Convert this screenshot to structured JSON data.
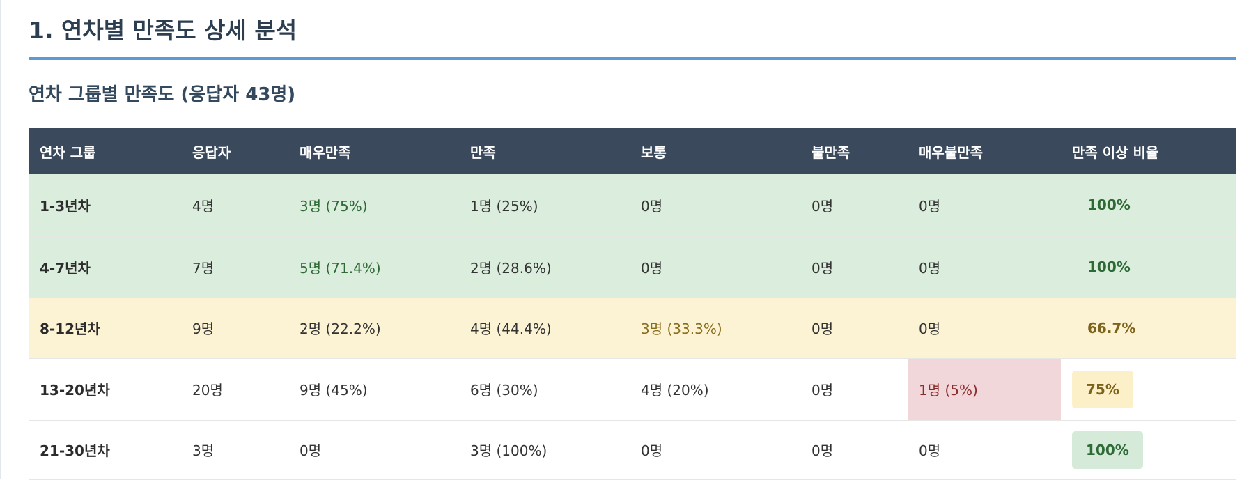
{
  "page": {
    "section_title": "1. 연차별 만족도 상세 분석",
    "subsection_title": "연차 그룹별 만족도 (응답자 43명)"
  },
  "table": {
    "headers": [
      "연차 그룹",
      "응답자",
      "매우만족",
      "만족",
      "보통",
      "불만족",
      "매우불만족",
      "만족 이상 비율"
    ],
    "rows": [
      {
        "group": "1-3년차",
        "respondents": "4명",
        "very_satisfied": "3명 (75%)",
        "satisfied": "1명 (25%)",
        "neutral": "0명",
        "dissatisfied": "0명",
        "very_dissatisfied": "0명",
        "rate": "100%"
      },
      {
        "group": "4-7년차",
        "respondents": "7명",
        "very_satisfied": "5명 (71.4%)",
        "satisfied": "2명 (28.6%)",
        "neutral": "0명",
        "dissatisfied": "0명",
        "very_dissatisfied": "0명",
        "rate": "100%"
      },
      {
        "group": "8-12년차",
        "respondents": "9명",
        "very_satisfied": "2명 (22.2%)",
        "satisfied": "4명 (44.4%)",
        "neutral": "3명 (33.3%)",
        "dissatisfied": "0명",
        "very_dissatisfied": "0명",
        "rate": "66.7%"
      },
      {
        "group": "13-20년차",
        "respondents": "20명",
        "very_satisfied": "9명 (45%)",
        "satisfied": "6명 (30%)",
        "neutral": "4명 (20%)",
        "dissatisfied": "0명",
        "very_dissatisfied": "1명 (5%)",
        "rate": "75%"
      },
      {
        "group": "21-30년차",
        "respondents": "3명",
        "very_satisfied": "0명",
        "satisfied": "3명 (100%)",
        "neutral": "0명",
        "dissatisfied": "0명",
        "very_dissatisfied": "0명",
        "rate": "100%"
      }
    ]
  },
  "colors": {
    "header_bg": "#3a4a5c",
    "title_underline": "#5b9bd5",
    "row_green": "#dbeddc",
    "row_yellow": "#fcf3d4",
    "cell_red": "#f2d7da"
  }
}
